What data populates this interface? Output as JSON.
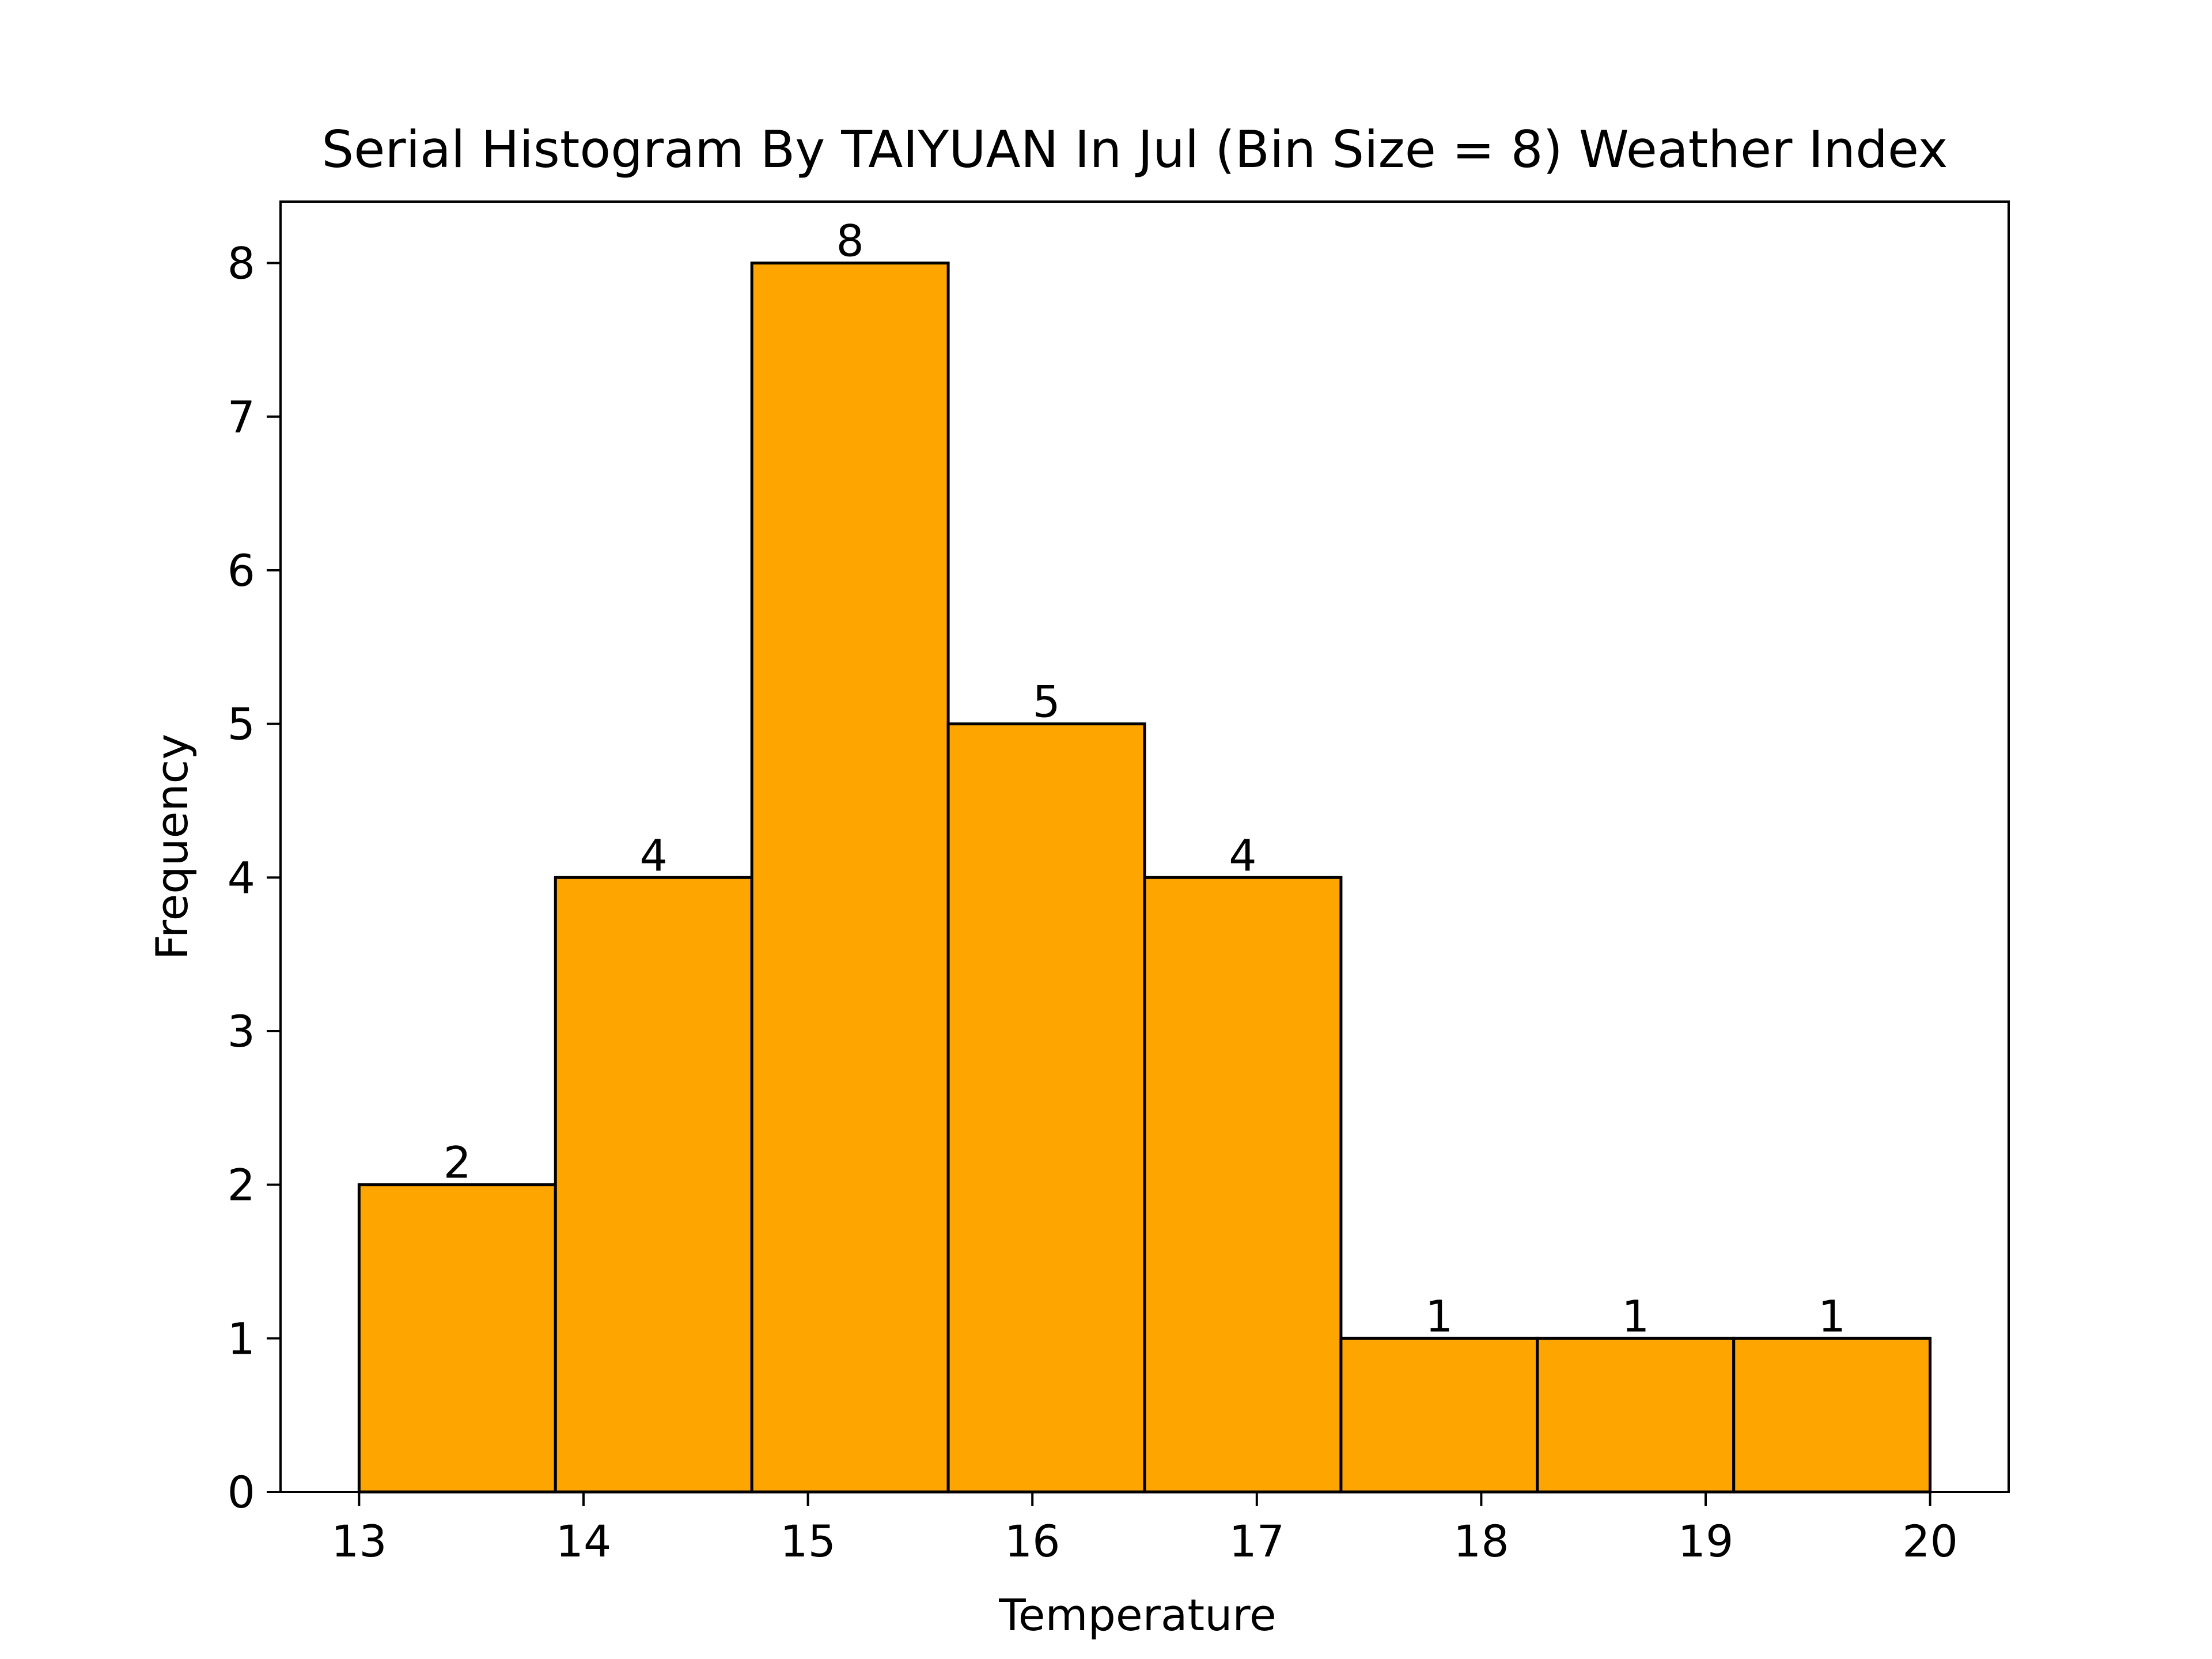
{
  "chart_data": {
    "type": "bar",
    "title": "Serial Histogram By TAIYUAN In Jul (Bin Size = 8) Weather Index",
    "xlabel": "Temperature",
    "ylabel": "Frequency",
    "bin_edges": [
      13.0,
      13.875,
      14.75,
      15.625,
      16.5,
      17.375,
      18.25,
      19.125,
      20.0
    ],
    "values": [
      2,
      4,
      8,
      5,
      4,
      1,
      1,
      1
    ],
    "data_labels": [
      "2",
      "4",
      "8",
      "5",
      "4",
      "1",
      "1",
      "1"
    ],
    "xlim": [
      12.65,
      20.35
    ],
    "ylim": [
      0,
      8.4
    ],
    "xticks": [
      13,
      14,
      15,
      16,
      17,
      18,
      19,
      20
    ],
    "xtick_labels": [
      "13",
      "14",
      "15",
      "16",
      "17",
      "18",
      "19",
      "20"
    ],
    "yticks": [
      0,
      1,
      2,
      3,
      4,
      5,
      6,
      7,
      8
    ],
    "ytick_labels": [
      "0",
      "1",
      "2",
      "3",
      "4",
      "5",
      "6",
      "7",
      "8"
    ],
    "bar_color": "#FFA500",
    "edge_color": "#000000",
    "grid": false,
    "legend": "none"
  }
}
